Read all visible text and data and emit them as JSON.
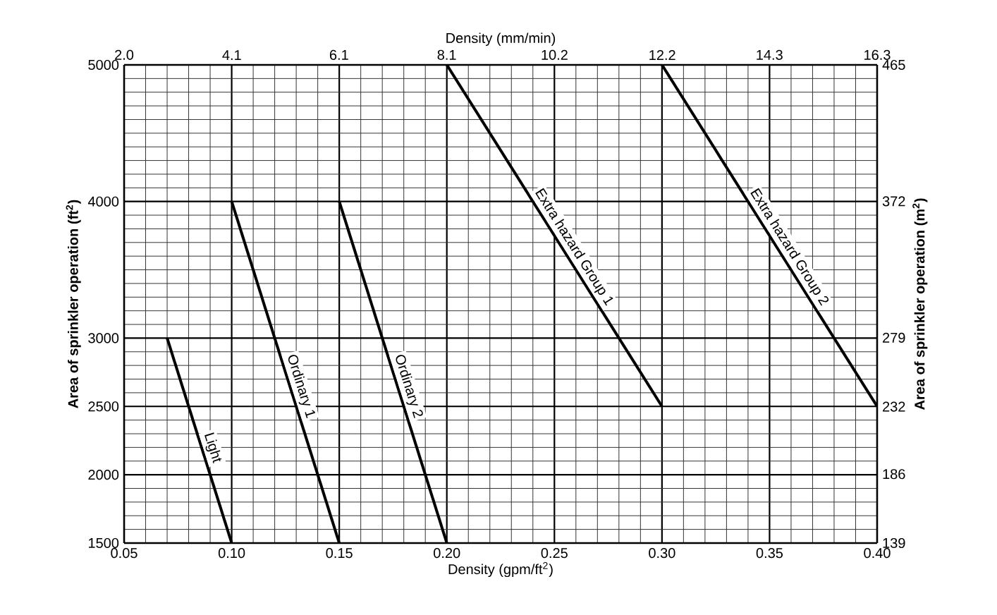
{
  "chart_data": {
    "type": "line",
    "xlabel": "Density (gpm/ft$^{2}$)",
    "ylabel": "**Area of sprinkler operation (ft$^{2}$)**",
    "x2label": "Density (mm/min)",
    "y2label": "**Area of sprinkler operation (m$^{2}$)**",
    "series": [
      {
        "name": "Light",
        "color": "#000000",
        "x": [
          0.07,
          0.1
        ],
        "values": [
          3000,
          1500
        ]
      },
      {
        "name": "Ordinary 1",
        "color": "#000000",
        "x": [
          0.1,
          0.15
        ],
        "values": [
          4000,
          1500
        ]
      },
      {
        "name": "Ordinary 2",
        "color": "#000000",
        "x": [
          0.15,
          0.2
        ],
        "values": [
          4000,
          1500
        ]
      },
      {
        "name": "Extra hazard Group 1",
        "color": "#000000",
        "x": [
          0.2,
          0.3
        ],
        "values": [
          5000,
          2500
        ]
      },
      {
        "name": "Extra hazard Group 2",
        "color": "#000000",
        "x": [
          0.3,
          0.4
        ],
        "values": [
          5000,
          2500
        ]
      }
    ],
    "xlim": [
      0.05,
      0.4
    ],
    "xticks": [
      {
        "value": 0.05,
        "label": "0.05"
      },
      {
        "value": 0.1,
        "label": "0.10"
      },
      {
        "value": 0.15,
        "label": "0.15"
      },
      {
        "value": 0.2,
        "label": "0.20"
      },
      {
        "value": 0.25,
        "label": "0.25"
      },
      {
        "value": 0.3,
        "label": "0.30"
      },
      {
        "value": 0.35,
        "label": "0.35"
      },
      {
        "value": 0.4,
        "label": "0.40"
      }
    ],
    "ylim": [
      1500,
      5000
    ],
    "yticks": [
      1500,
      2000,
      2500,
      3000,
      4000,
      5000
    ],
    "x2lim": [
      2.04,
      16.3
    ],
    "x2ticks": [
      {
        "value": 2.04,
        "label": "2.0"
      },
      {
        "value": 4.08,
        "label": "4.1"
      },
      {
        "value": 6.11,
        "label": "6.1"
      },
      {
        "value": 8.15,
        "label": "8.1"
      },
      {
        "value": 10.19,
        "label": "10.2"
      },
      {
        "value": 12.23,
        "label": "12.2"
      },
      {
        "value": 14.26,
        "label": "14.3"
      },
      {
        "value": 16.3,
        "label": "16.3"
      }
    ],
    "y2lim": [
      139,
      465
    ],
    "y2ticks": [
      139,
      186,
      232,
      279,
      372,
      465
    ],
    "grid": true,
    "marker": "none",
    "line_style": "solid"
  }
}
